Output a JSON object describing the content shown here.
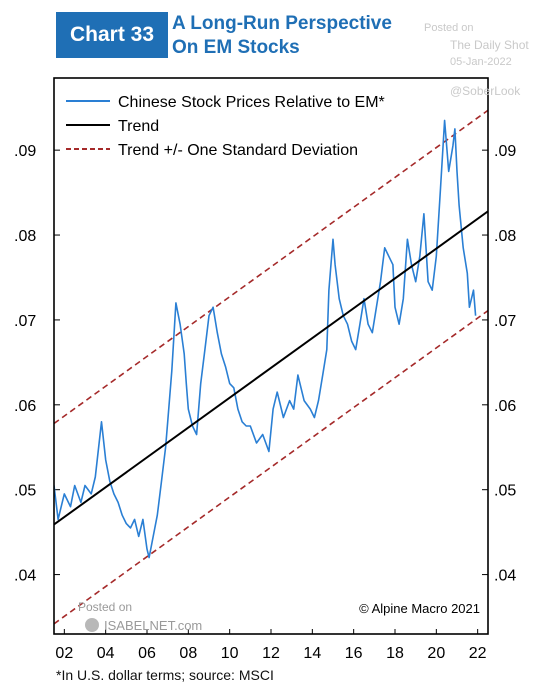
{
  "header": {
    "chart_number": "Chart 33",
    "title_line1": "A Long-Run Perspective",
    "title_line2": "On EM Stocks"
  },
  "watermark": {
    "posted_on": "Posted on",
    "site": "The Daily Shot",
    "date": "05-Jan-2022",
    "handle": "@SoberLook",
    "isabel_posted": "Posted on",
    "isabel_site": "ISABELNET.com"
  },
  "copyright": "© Alpine Macro 2021",
  "footnote": "*In U.S. dollar terms; source: MSCI",
  "chart_data": {
    "type": "line",
    "x_tick_labels": [
      "02",
      "04",
      "06",
      "08",
      "10",
      "12",
      "14",
      "16",
      "18",
      "20",
      "22"
    ],
    "x_ticks": [
      2002,
      2004,
      2006,
      2008,
      2010,
      2012,
      2014,
      2016,
      2018,
      2020,
      2022
    ],
    "xlim": [
      2001.5,
      2022.5
    ],
    "y_tick_labels": [
      ".04",
      ".05",
      ".06",
      ".07",
      ".08",
      ".09"
    ],
    "y_ticks": [
      0.04,
      0.05,
      0.06,
      0.07,
      0.08,
      0.09
    ],
    "ylim": [
      0.033,
      0.0985
    ],
    "grid": false,
    "legend_position": "top-left",
    "colors": {
      "series": "#2a7fd4",
      "trend": "#000000",
      "band": "#a52a2a"
    },
    "series": [
      {
        "name": "Chinese Stock Prices Relative to EM*",
        "style": "solid-blue",
        "x": [
          2001.5,
          2001.7,
          2002.0,
          2002.3,
          2002.5,
          2002.8,
          2003.0,
          2003.3,
          2003.5,
          2003.8,
          2004.0,
          2004.2,
          2004.4,
          2004.6,
          2004.8,
          2005.0,
          2005.2,
          2005.4,
          2005.6,
          2005.8,
          2006.0,
          2006.1,
          2006.3,
          2006.5,
          2006.7,
          2006.9,
          2007.0,
          2007.2,
          2007.4,
          2007.6,
          2007.8,
          2007.9,
          2008.0,
          2008.2,
          2008.4,
          2008.6,
          2008.8,
          2009.0,
          2009.2,
          2009.4,
          2009.6,
          2009.8,
          2010.0,
          2010.2,
          2010.4,
          2010.6,
          2010.8,
          2011.0,
          2011.3,
          2011.6,
          2011.9,
          2012.1,
          2012.3,
          2012.6,
          2012.9,
          2013.1,
          2013.3,
          2013.6,
          2013.9,
          2014.1,
          2014.3,
          2014.5,
          2014.7,
          2014.8,
          2015.0,
          2015.1,
          2015.3,
          2015.5,
          2015.7,
          2015.9,
          2016.1,
          2016.3,
          2016.5,
          2016.7,
          2016.9,
          2017.1,
          2017.3,
          2017.5,
          2017.7,
          2017.9,
          2018.0,
          2018.2,
          2018.4,
          2018.6,
          2018.8,
          2019.0,
          2019.2,
          2019.4,
          2019.6,
          2019.8,
          2020.0,
          2020.2,
          2020.4,
          2020.6,
          2020.8,
          2020.9,
          2021.0,
          2021.1,
          2021.3,
          2021.5,
          2021.6,
          2021.8,
          2021.9
        ],
        "y": [
          0.0505,
          0.0465,
          0.0495,
          0.048,
          0.0505,
          0.0485,
          0.0505,
          0.0495,
          0.0515,
          0.058,
          0.0535,
          0.051,
          0.0495,
          0.0485,
          0.047,
          0.046,
          0.0455,
          0.0465,
          0.0445,
          0.0465,
          0.043,
          0.042,
          0.0445,
          0.047,
          0.051,
          0.055,
          0.058,
          0.064,
          0.072,
          0.0695,
          0.066,
          0.0625,
          0.0595,
          0.0575,
          0.0565,
          0.0625,
          0.0665,
          0.0705,
          0.0715,
          0.0685,
          0.066,
          0.0645,
          0.0625,
          0.062,
          0.0595,
          0.058,
          0.0575,
          0.0575,
          0.0555,
          0.0565,
          0.0545,
          0.0595,
          0.0615,
          0.0585,
          0.0605,
          0.0595,
          0.0635,
          0.0605,
          0.0595,
          0.0585,
          0.0605,
          0.0635,
          0.0665,
          0.0735,
          0.0795,
          0.0765,
          0.0725,
          0.0705,
          0.0695,
          0.0675,
          0.0665,
          0.0695,
          0.0725,
          0.0695,
          0.0685,
          0.0715,
          0.0745,
          0.0785,
          0.0775,
          0.0765,
          0.0715,
          0.0695,
          0.0725,
          0.0795,
          0.0765,
          0.0745,
          0.0775,
          0.0825,
          0.0745,
          0.0735,
          0.0775,
          0.0855,
          0.0935,
          0.0875,
          0.0905,
          0.0925,
          0.0875,
          0.0835,
          0.0785,
          0.0755,
          0.0715,
          0.0735,
          0.0705
        ]
      },
      {
        "name": "Trend",
        "style": "solid-black",
        "x": [
          2001.5,
          2022.5
        ],
        "y": [
          0.0459,
          0.0828
        ]
      },
      {
        "name": "Trend +/- One Standard Deviation",
        "style": "dashed-red",
        "x": [
          2001.5,
          2022.5
        ],
        "y": [
          0.0578,
          0.0947
        ]
      },
      {
        "name": "",
        "style": "dashed-red",
        "x": [
          2001.5,
          2022.5
        ],
        "y": [
          0.0342,
          0.0711
        ]
      }
    ]
  }
}
